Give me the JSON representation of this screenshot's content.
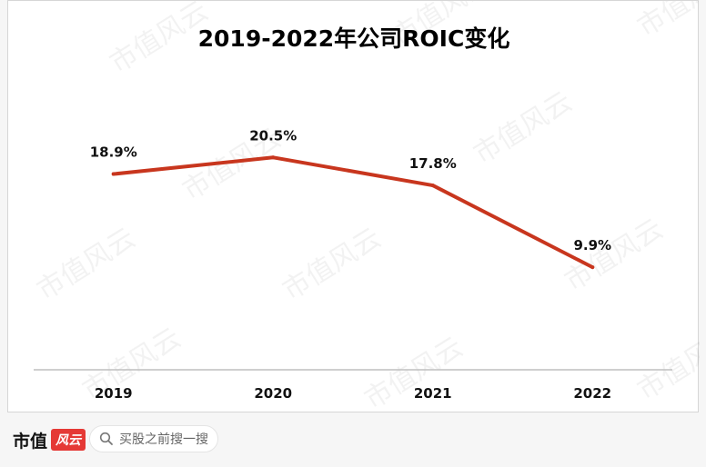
{
  "chart_data": {
    "type": "line",
    "title": "2019-2022年公司ROIC变化",
    "categories": [
      "2019",
      "2020",
      "2021",
      "2022"
    ],
    "series": [
      {
        "values": [
          18.9,
          20.5,
          17.8,
          9.9
        ],
        "labels": [
          "18.9%",
          "20.5%",
          "17.8%",
          "9.9%"
        ]
      }
    ],
    "ylim": [
      0,
      30
    ],
    "grid": false,
    "legend": "none",
    "line_color": "#c8361e"
  },
  "watermark": "市值风云",
  "footer": {
    "brand_text": "市值",
    "brand_badge": "风云",
    "search_placeholder": "买股之前搜一搜"
  }
}
